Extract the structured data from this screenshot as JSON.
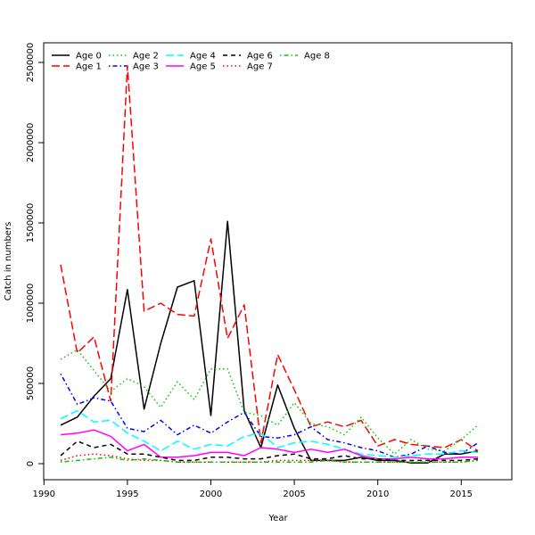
{
  "chart_data": {
    "type": "line",
    "title": "",
    "xlabel": "Year",
    "ylabel": "Catch in numbers",
    "xlim": [
      1990,
      2017
    ],
    "ylim": [
      -100000,
      2600000
    ],
    "x_ticks": [
      1990,
      1995,
      2000,
      2005,
      2010,
      2015
    ],
    "y_ticks": [
      0,
      500000,
      1000000,
      1500000,
      2000000,
      2500000
    ],
    "x_tick_labels": [
      "1990",
      "1995",
      "2000",
      "2005",
      "2010",
      "2015"
    ],
    "y_tick_labels": [
      "0",
      "500000",
      "1000000",
      "1500000",
      "2000000",
      "2500000"
    ],
    "grid": false,
    "legend_position": "top-left",
    "x": [
      1991,
      1992,
      1993,
      1994,
      1995,
      1996,
      1997,
      1998,
      1999,
      2000,
      2001,
      2002,
      2003,
      2004,
      2005,
      2006,
      2007,
      2008,
      2009,
      2010,
      2011,
      2012,
      2013,
      2014,
      2015,
      2016
    ],
    "series": [
      {
        "name": "Age 0",
        "color": "#000000",
        "dash": "solid",
        "values": [
          240000,
          290000,
          420000,
          530000,
          1085000,
          340000,
          750000,
          1100000,
          1140000,
          300000,
          1510000,
          330000,
          100000,
          490000,
          220000,
          20000,
          20000,
          20000,
          40000,
          20000,
          20000,
          5000,
          5000,
          60000,
          60000,
          80000
        ]
      },
      {
        "name": "Age 1",
        "color": "#ff0000",
        "dash": "longdash",
        "values": [
          1240000,
          690000,
          790000,
          390000,
          2480000,
          950000,
          1000000,
          930000,
          920000,
          1400000,
          780000,
          990000,
          130000,
          680000,
          460000,
          230000,
          260000,
          230000,
          270000,
          110000,
          150000,
          120000,
          110000,
          100000,
          150000,
          80000
        ]
      },
      {
        "name": "Age 2",
        "color": "#00cd00",
        "dash": "dotted",
        "values": [
          650000,
          710000,
          580000,
          450000,
          530000,
          480000,
          350000,
          510000,
          400000,
          590000,
          590000,
          320000,
          300000,
          240000,
          380000,
          250000,
          230000,
          180000,
          290000,
          160000,
          60000,
          150000,
          90000,
          80000,
          150000,
          240000
        ]
      },
      {
        "name": "Age 3",
        "color": "#0000ff",
        "dash": "dotdash",
        "values": [
          560000,
          370000,
          410000,
          390000,
          220000,
          200000,
          270000,
          180000,
          240000,
          190000,
          260000,
          320000,
          170000,
          160000,
          180000,
          230000,
          150000,
          130000,
          100000,
          80000,
          40000,
          60000,
          110000,
          70000,
          60000,
          130000
        ]
      },
      {
        "name": "Age 4",
        "color": "#00ffff",
        "dash": "longdash",
        "values": [
          280000,
          330000,
          260000,
          270000,
          190000,
          140000,
          80000,
          140000,
          90000,
          120000,
          110000,
          170000,
          190000,
          100000,
          130000,
          140000,
          120000,
          90000,
          60000,
          50000,
          40000,
          50000,
          60000,
          60000,
          80000,
          70000
        ]
      },
      {
        "name": "Age 5",
        "color": "#ff00ff",
        "dash": "solid",
        "values": [
          180000,
          190000,
          210000,
          170000,
          80000,
          120000,
          40000,
          40000,
          50000,
          70000,
          70000,
          50000,
          100000,
          90000,
          70000,
          90000,
          70000,
          90000,
          50000,
          30000,
          30000,
          40000,
          30000,
          30000,
          40000,
          40000
        ]
      },
      {
        "name": "Age 6",
        "color": "#000000",
        "dash": "dashed",
        "values": [
          50000,
          140000,
          100000,
          120000,
          60000,
          60000,
          40000,
          20000,
          20000,
          40000,
          40000,
          30000,
          30000,
          50000,
          60000,
          30000,
          30000,
          50000,
          30000,
          30000,
          20000,
          20000,
          20000,
          20000,
          20000,
          30000
        ]
      },
      {
        "name": "Age 7",
        "color": "#ff0000",
        "dash": "dotted",
        "values": [
          20000,
          50000,
          60000,
          50000,
          30000,
          20000,
          20000,
          10000,
          10000,
          10000,
          10000,
          10000,
          10000,
          20000,
          20000,
          20000,
          20000,
          10000,
          10000,
          10000,
          10000,
          10000,
          10000,
          10000,
          10000,
          20000
        ]
      },
      {
        "name": "Age 8",
        "color": "#00cd00",
        "dash": "dotdash",
        "values": [
          10000,
          20000,
          30000,
          40000,
          20000,
          30000,
          20000,
          10000,
          10000,
          10000,
          10000,
          10000,
          10000,
          10000,
          10000,
          10000,
          20000,
          10000,
          10000,
          10000,
          10000,
          10000,
          10000,
          10000,
          10000,
          20000
        ]
      }
    ]
  }
}
